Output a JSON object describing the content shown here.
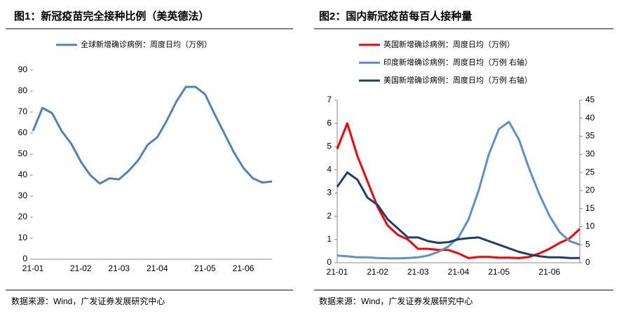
{
  "chart_data": [
    {
      "type": "line",
      "title": "图1：新冠疫苗完全接种比例（美英德法）",
      "source": "数据来源：Wind，广发证券发展研究中心",
      "categories": [
        "21-01",
        null,
        null,
        null,
        null,
        "21-02",
        null,
        null,
        null,
        "21-03",
        null,
        null,
        null,
        "21-04",
        null,
        null,
        null,
        null,
        "21-05",
        null,
        null,
        null,
        "21-06",
        null,
        null,
        null
      ],
      "series": [
        {
          "name": "全球新增确诊病例：周度日均（万例）",
          "color": "#4f81bd",
          "values": [
            61,
            72,
            69.5,
            61,
            55,
            46.5,
            40,
            36,
            38.5,
            38,
            42,
            47,
            54.5,
            58,
            66,
            75,
            82,
            82,
            78.5,
            69,
            60,
            51,
            43.5,
            38.5,
            36.5,
            37
          ]
        }
      ],
      "ylim": [
        0,
        90
      ],
      "yticks": [
        0,
        10,
        20,
        30,
        40,
        50,
        60,
        70,
        80,
        90
      ]
    },
    {
      "type": "line",
      "title": "图2：国内新冠疫苗每百人接种量",
      "source": "数据来源：Wind，广发证券发展研究中心",
      "categories": [
        "21-01",
        null,
        null,
        null,
        "21-02",
        null,
        null,
        null,
        "21-03",
        null,
        null,
        null,
        "21-04",
        null,
        null,
        null,
        "21-05",
        null,
        null,
        null,
        null,
        "21-06",
        null,
        null,
        null
      ],
      "series": [
        {
          "name": "英国新增确诊病例：周度日均（万例）",
          "color": "#ff0000",
          "values": [
            4.9,
            6,
            4.6,
            3.5,
            2.4,
            1.6,
            1.2,
            1,
            0.6,
            0.6,
            0.55,
            0.55,
            0.4,
            0.2,
            0.25,
            0.25,
            0.22,
            0.22,
            0.2,
            0.25,
            0.4,
            0.6,
            0.85,
            1.05,
            1.45
          ]
        },
        {
          "name": "印度新增确诊病例：周度日均（万例 右轴）",
          "color": "#5b8fd0",
          "axis": "y2",
          "values": [
            2,
            1.8,
            1.5,
            1.5,
            1.3,
            1.2,
            1.2,
            1.3,
            1.5,
            2,
            3,
            4.5,
            7,
            12,
            20,
            30,
            37,
            39,
            34,
            26,
            19,
            13,
            8.5,
            6,
            5
          ]
        },
        {
          "name": "美国新增确诊病例：周度日均（万例 右轴）",
          "color": "#1f3d6b",
          "axis": "y2",
          "values": [
            21,
            25,
            23,
            18,
            16,
            12,
            9.5,
            7,
            7,
            6,
            5.5,
            5.7,
            6.5,
            6.8,
            7,
            6,
            5,
            4,
            3,
            2.3,
            1.8,
            1.5,
            1.5,
            1.3,
            1.3
          ]
        }
      ],
      "ylim": [
        0,
        7
      ],
      "yticks": [
        0,
        1,
        2,
        3,
        4,
        5,
        6,
        7
      ],
      "y2lim": [
        0,
        45
      ],
      "y2ticks": [
        0,
        5,
        10,
        15,
        20,
        25,
        30,
        35,
        40,
        45
      ]
    }
  ]
}
